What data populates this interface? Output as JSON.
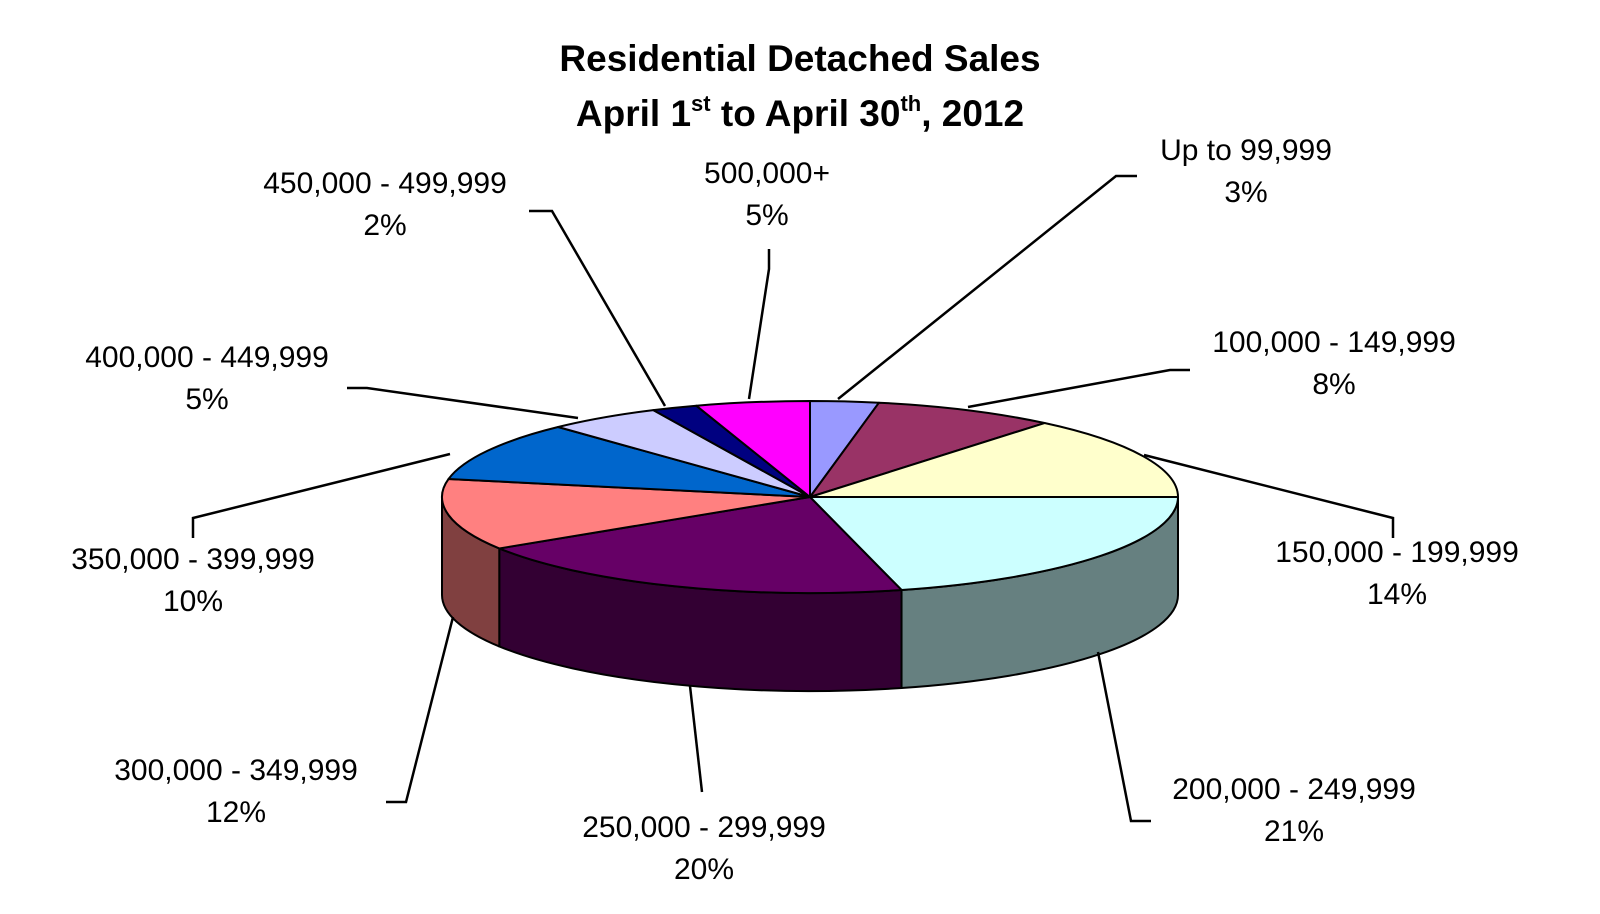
{
  "chart_data": {
    "type": "pie",
    "title_line1": "Residential Detached Sales",
    "title_line2": {
      "part1": "April 1",
      "sup1": "st",
      "part2": " to April 30",
      "sup2": "th",
      "part3": ", 2012"
    },
    "slices": [
      {
        "category": "Up to 99,999",
        "value": 3,
        "label": "3%",
        "color": "#9999FF"
      },
      {
        "category": "100,000 - 149,999",
        "value": 8,
        "label": "8%",
        "color": "#993366"
      },
      {
        "category": "150,000 - 199,999",
        "value": 14,
        "label": "14%",
        "color": "#FFFFCC"
      },
      {
        "category": "200,000 - 249,999",
        "value": 21,
        "label": "21%",
        "color": "#CCFFFF"
      },
      {
        "category": "250,000 - 299,999",
        "value": 20,
        "label": "20%",
        "color": "#660066"
      },
      {
        "category": "300,000 - 349,999",
        "value": 12,
        "label": "12%",
        "color": "#FF8080"
      },
      {
        "category": "350,000 - 399,999",
        "value": 10,
        "label": "10%",
        "color": "#0066CC"
      },
      {
        "category": "400,000 - 449,999",
        "value": 5,
        "label": "5%",
        "color": "#CCCCFF"
      },
      {
        "category": "450,000 - 499,999",
        "value": 2,
        "label": "2%",
        "color": "#000080"
      },
      {
        "category": "500,000+",
        "value": 5,
        "label": "5%",
        "color": "#FF00FF"
      }
    ],
    "style": "3d-pie",
    "legend": "none"
  }
}
